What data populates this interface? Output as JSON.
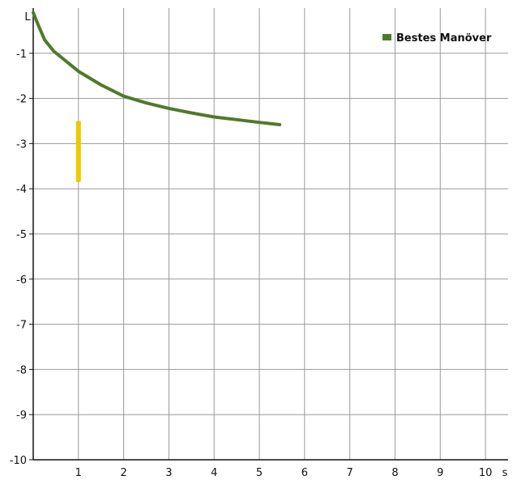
{
  "chart_data": {
    "type": "line",
    "xlabel": "s",
    "ylabel": "L",
    "xlim": [
      0,
      10.5
    ],
    "ylim": [
      -10,
      0
    ],
    "x_ticks": [
      1,
      2,
      3,
      4,
      5,
      6,
      7,
      8,
      9,
      10
    ],
    "y_ticks": [
      -1,
      -2,
      -3,
      -4,
      -5,
      -6,
      -7,
      -8,
      -9,
      -10
    ],
    "grid": true,
    "legend_position": "top-right",
    "series": [
      {
        "name": "Bestes Manöver",
        "color": "#4f7a2a",
        "x": [
          0,
          0.1,
          0.25,
          0.45,
          1.0,
          1.5,
          2.0,
          2.5,
          3.0,
          3.5,
          4.0,
          4.5,
          5.0,
          5.45
        ],
        "y": [
          -0.1,
          -0.35,
          -0.7,
          -0.95,
          -1.4,
          -1.7,
          -1.95,
          -2.1,
          -2.22,
          -2.32,
          -2.41,
          -2.47,
          -2.53,
          -2.58
        ]
      }
    ],
    "annotations": [
      {
        "type": "vertical-bar",
        "x": 1.0,
        "y_from": -2.5,
        "y_to": -3.85,
        "color": "#f0c800"
      }
    ]
  }
}
